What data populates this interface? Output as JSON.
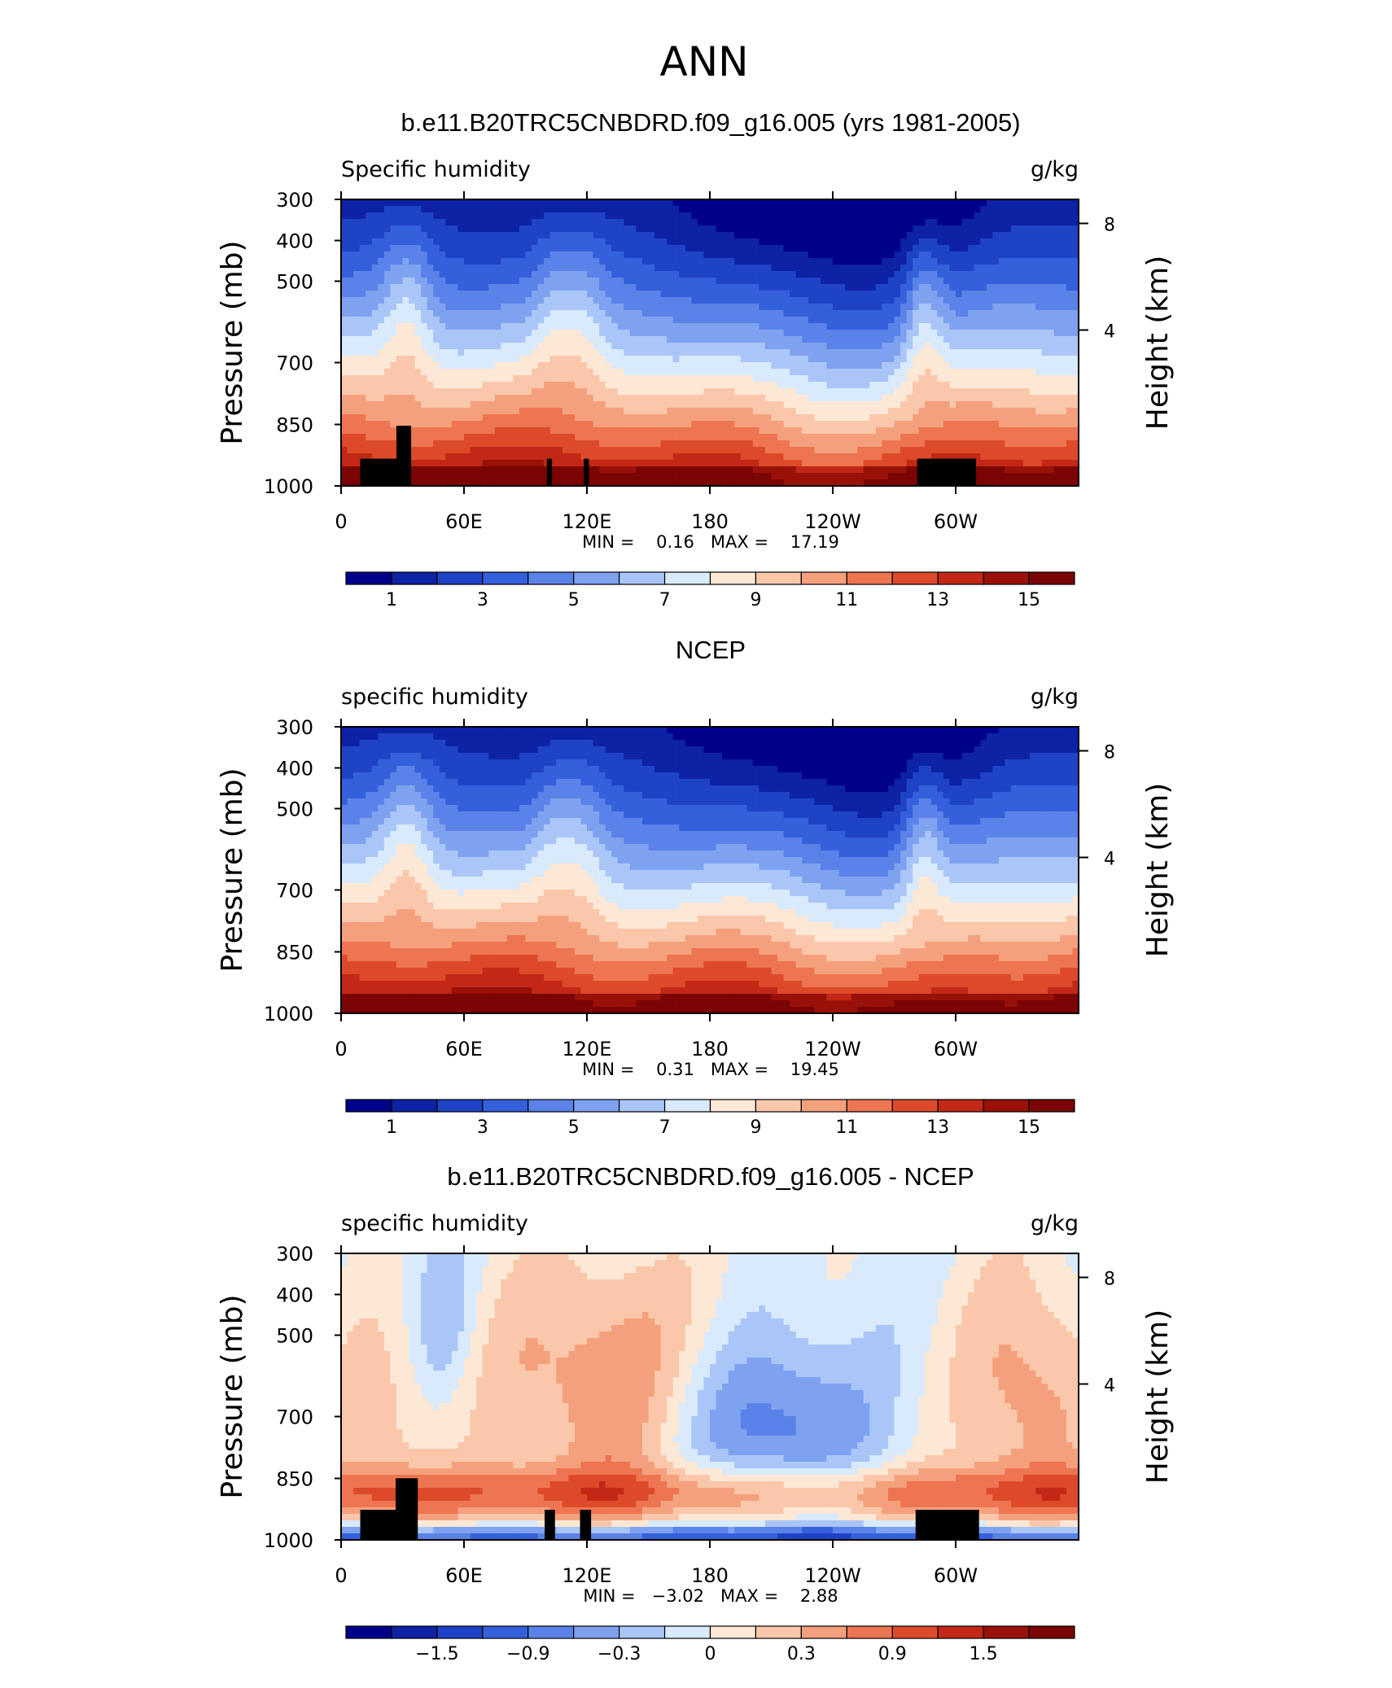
{
  "figure_title": "ANN",
  "chart_data": [
    {
      "type": "heatmap",
      "title": "b.e11.B20TRC5CNBDRD.f09_g16.005 (yrs 1981-2005)",
      "subtitle_left": "Specific humidity",
      "subtitle_right": "g/kg",
      "ylabel": "Pressure (mb)",
      "ylabel_right": "Height (km)",
      "x_ticks": [
        "0",
        "60E",
        "120E",
        "180",
        "120W",
        "60W"
      ],
      "y_ticks": [
        "300",
        "400",
        "500",
        "700",
        "850",
        "1000"
      ],
      "y_ticks_right": [
        "8",
        "4"
      ],
      "stats": "MIN =    0.16   MAX =    17.19",
      "stats_min": 0.16,
      "stats_max": 17.19,
      "colorbar_labels": [
        "1",
        "3",
        "5",
        "7",
        "9",
        "11",
        "13",
        "15"
      ],
      "colorbar_levels": [
        1,
        2,
        3,
        4,
        5,
        6,
        7,
        8,
        9,
        10,
        11,
        12,
        13,
        14,
        15
      ]
    },
    {
      "type": "heatmap",
      "title": "NCEP",
      "subtitle_left": "specific humidity",
      "subtitle_right": "g/kg",
      "ylabel": "Pressure (mb)",
      "ylabel_right": "Height (km)",
      "x_ticks": [
        "0",
        "60E",
        "120E",
        "180",
        "120W",
        "60W"
      ],
      "y_ticks": [
        "300",
        "400",
        "500",
        "700",
        "850",
        "1000"
      ],
      "y_ticks_right": [
        "8",
        "4"
      ],
      "stats": "MIN =    0.31   MAX =    19.45",
      "stats_min": 0.31,
      "stats_max": 19.45,
      "colorbar_labels": [
        "1",
        "3",
        "5",
        "7",
        "9",
        "11",
        "13",
        "15"
      ],
      "colorbar_levels": [
        1,
        2,
        3,
        4,
        5,
        6,
        7,
        8,
        9,
        10,
        11,
        12,
        13,
        14,
        15
      ]
    },
    {
      "type": "heatmap",
      "title": "b.e11.B20TRC5CNBDRD.f09_g16.005 - NCEP",
      "subtitle_left": "specific humidity",
      "subtitle_right": "g/kg",
      "ylabel": "Pressure (mb)",
      "ylabel_right": "Height (km)",
      "x_ticks": [
        "0",
        "60E",
        "120E",
        "180",
        "120W",
        "60W"
      ],
      "y_ticks": [
        "300",
        "400",
        "500",
        "700",
        "850",
        "1000"
      ],
      "y_ticks_right": [
        "8",
        "4"
      ],
      "stats": "MIN =   −3.02   MAX =    2.88",
      "stats_min": -3.02,
      "stats_max": 2.88,
      "colorbar_labels": [
        "−1.5",
        "−0.9",
        "−0.3",
        "0",
        "0.3",
        "0.9",
        "1.5"
      ],
      "colorbar_levels": [
        -1.8,
        -1.5,
        -1.2,
        -0.9,
        -0.6,
        -0.3,
        -0.1,
        0,
        0.1,
        0.3,
        0.6,
        0.9,
        1.2,
        1.5,
        1.8
      ]
    }
  ],
  "colors": {
    "palette": [
      "#00008a",
      "#0d22a4",
      "#1f43c6",
      "#3560dc",
      "#5a82e8",
      "#7fa2f0",
      "#aac6f8",
      "#d8eafc",
      "#fde8d6",
      "#fac7aa",
      "#f5a07d",
      "#ee7551",
      "#dd4a2a",
      "#c22815",
      "#9a1109",
      "#7a0504"
    ],
    "land_mask": "#000000"
  }
}
